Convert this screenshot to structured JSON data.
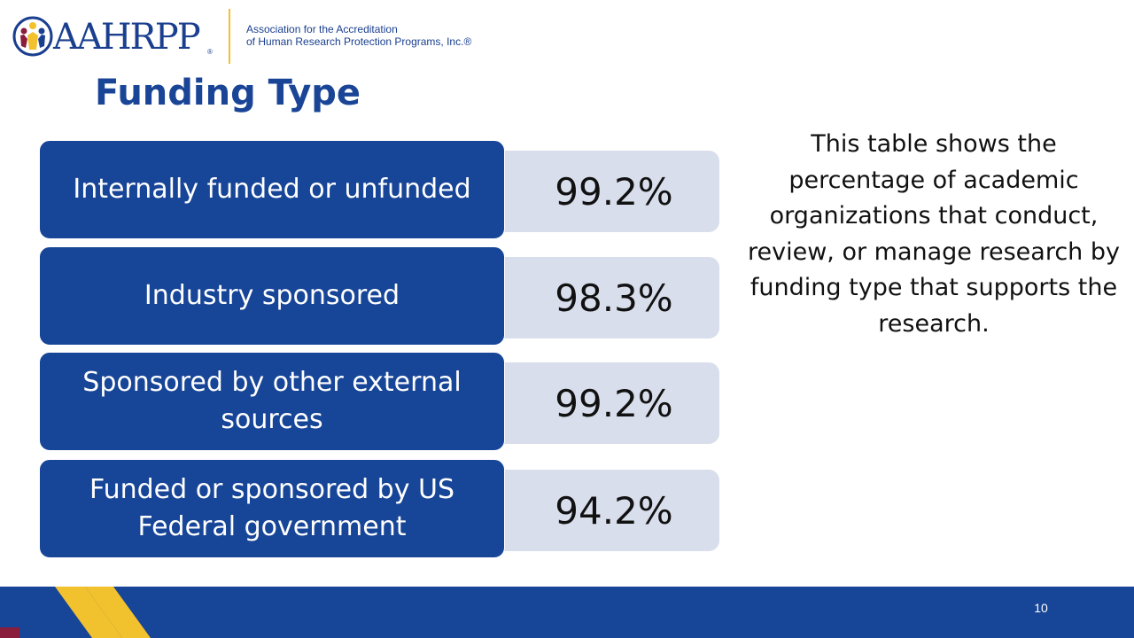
{
  "logo": {
    "wordmark": "AAHRPP",
    "registered": "®",
    "tagline_line1": "Association for the Accreditation",
    "tagline_line2": "of Human Research Protection Programs, Inc.®"
  },
  "title": "Funding Type",
  "rows": [
    {
      "label": "Internally funded or unfunded",
      "value": "99.2%"
    },
    {
      "label": "Industry sponsored",
      "value": "98.3%"
    },
    {
      "label": "Sponsored by other external sources",
      "value": "99.2%"
    },
    {
      "label": "Funded or sponsored by US Federal government",
      "value": "94.2%"
    }
  ],
  "description": "This table shows the percentage of academic organizations that conduct, review, or manage research by funding type that supports the research.",
  "page_number": "10",
  "colors": {
    "brand_blue": "#174597",
    "value_fill": "#d9deec",
    "accent_yellow": "#f2c12e",
    "accent_maroon": "#8a1c3c"
  }
}
